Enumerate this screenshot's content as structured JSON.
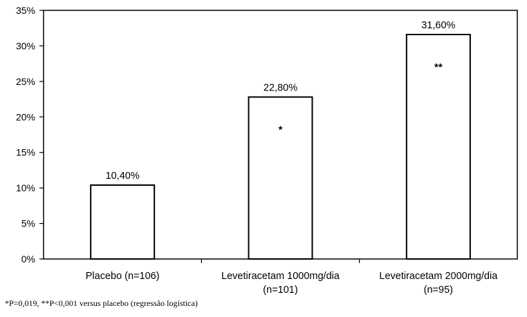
{
  "chart_data": {
    "type": "bar",
    "categories": [
      [
        "Placebo (n=106)"
      ],
      [
        "Levetiracetam 1000mg/dia",
        "(n=101)"
      ],
      [
        "Levetiracetam 2000mg/dia",
        "(n=95)"
      ]
    ],
    "values": [
      10.4,
      22.8,
      31.6
    ],
    "data_labels": [
      "10,40%",
      "22,80%",
      "31,60%"
    ],
    "significance_marks": [
      "",
      "*",
      "**"
    ],
    "title": "",
    "xlabel": "",
    "ylabel": "",
    "ylim": [
      0,
      35
    ],
    "yticks": [
      0,
      5,
      10,
      15,
      20,
      25,
      30,
      35
    ],
    "ytick_labels": [
      "0%",
      "5%",
      "10%",
      "15%",
      "20%",
      "25%",
      "30%",
      "35%"
    ],
    "grid": false,
    "legend": "none",
    "colors": {
      "bar_fill": "#ffffff",
      "bar_stroke": "#000000",
      "axis": "#000000"
    }
  },
  "footnote": "*P=0,019, **P<0,001 versus placebo (regressão logística)"
}
